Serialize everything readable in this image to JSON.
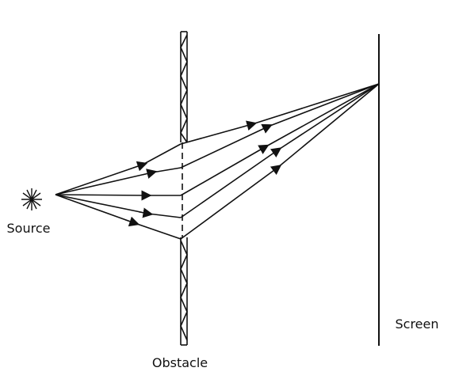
{
  "labels": {
    "source": "Source",
    "obstacle": "Obstacle",
    "screen": "Screen"
  },
  "colors": {
    "ink": "#111111",
    "background": "#ffffff"
  }
}
